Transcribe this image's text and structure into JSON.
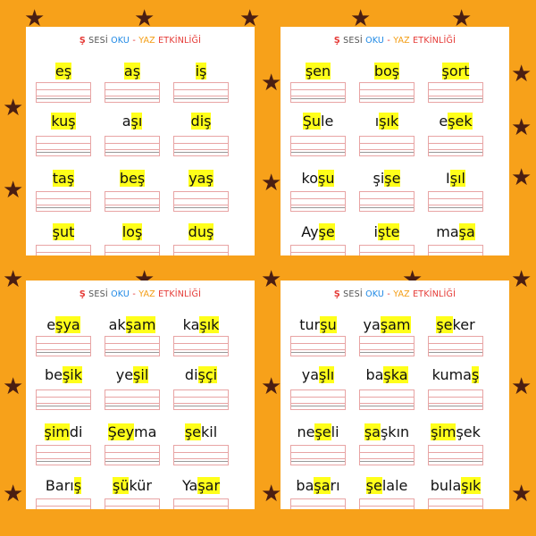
{
  "colors": {
    "background": "#f7a11a",
    "star": "#4a1e12",
    "highlight": "#ffff1a",
    "title_red": "#e53935",
    "title_blue": "#1e88e5",
    "title_orange": "#f39c12"
  },
  "star_glyph": "★",
  "title": {
    "letter": "Ş",
    "sesi": "SESİ",
    "oku": "OKU",
    "dash": "-",
    "yaz": "YAZ",
    "etkinligi": "ETKİNLİĞİ"
  },
  "sheets": [
    {
      "words": [
        [
          "",
          "eş",
          ""
        ],
        [
          "",
          "aş",
          ""
        ],
        [
          "",
          "iş",
          ""
        ],
        [
          "",
          "kuş",
          ""
        ],
        [
          "a",
          "şı",
          ""
        ],
        [
          "",
          "diş",
          ""
        ],
        [
          "",
          "taş",
          ""
        ],
        [
          "",
          "beş",
          ""
        ],
        [
          "",
          "yaş",
          ""
        ],
        [
          "",
          "şut",
          ""
        ],
        [
          "",
          "loş",
          ""
        ],
        [
          "",
          "duş",
          ""
        ]
      ]
    },
    {
      "words": [
        [
          "",
          "şen",
          ""
        ],
        [
          "",
          "boş",
          ""
        ],
        [
          "",
          "şort",
          ""
        ],
        [
          "",
          "Şu",
          "le"
        ],
        [
          "ı",
          "şık",
          ""
        ],
        [
          "e",
          "şek",
          ""
        ],
        [
          "ko",
          "şu",
          ""
        ],
        [
          "şi",
          "şe",
          ""
        ],
        [
          "I",
          "şıl",
          ""
        ],
        [
          "Ay",
          "şe",
          ""
        ],
        [
          "i",
          "şte",
          ""
        ],
        [
          "ma",
          "şa",
          ""
        ]
      ]
    },
    {
      "words": [
        [
          "e",
          "şya",
          ""
        ],
        [
          "ak",
          "şam",
          ""
        ],
        [
          "ka",
          "şık",
          ""
        ],
        [
          "be",
          "şik",
          ""
        ],
        [
          "ye",
          "şil",
          ""
        ],
        [
          "di",
          "şçi",
          ""
        ],
        [
          "",
          "şim",
          "di"
        ],
        [
          "",
          "Şey",
          "ma"
        ],
        [
          "",
          "şe",
          "kil"
        ],
        [
          "Barı",
          "ş",
          ""
        ],
        [
          "",
          "şü",
          "kür"
        ],
        [
          "Ya",
          "şar",
          ""
        ]
      ]
    },
    {
      "words": [
        [
          "tur",
          "şu",
          ""
        ],
        [
          "ya",
          "şam",
          ""
        ],
        [
          "",
          "şe",
          "ker"
        ],
        [
          "ya",
          "şlı",
          ""
        ],
        [
          "ba",
          "şka",
          ""
        ],
        [
          "kuma",
          "ş",
          ""
        ],
        [
          "ne",
          "şe",
          "li"
        ],
        [
          "",
          "şa",
          "şkın"
        ],
        [
          "",
          "şim",
          "şek"
        ],
        [
          "ba",
          "şa",
          "rı"
        ],
        [
          "",
          "şe",
          "la",
          "le"
        ],
        [
          "bula",
          "şık",
          ""
        ]
      ]
    }
  ]
}
